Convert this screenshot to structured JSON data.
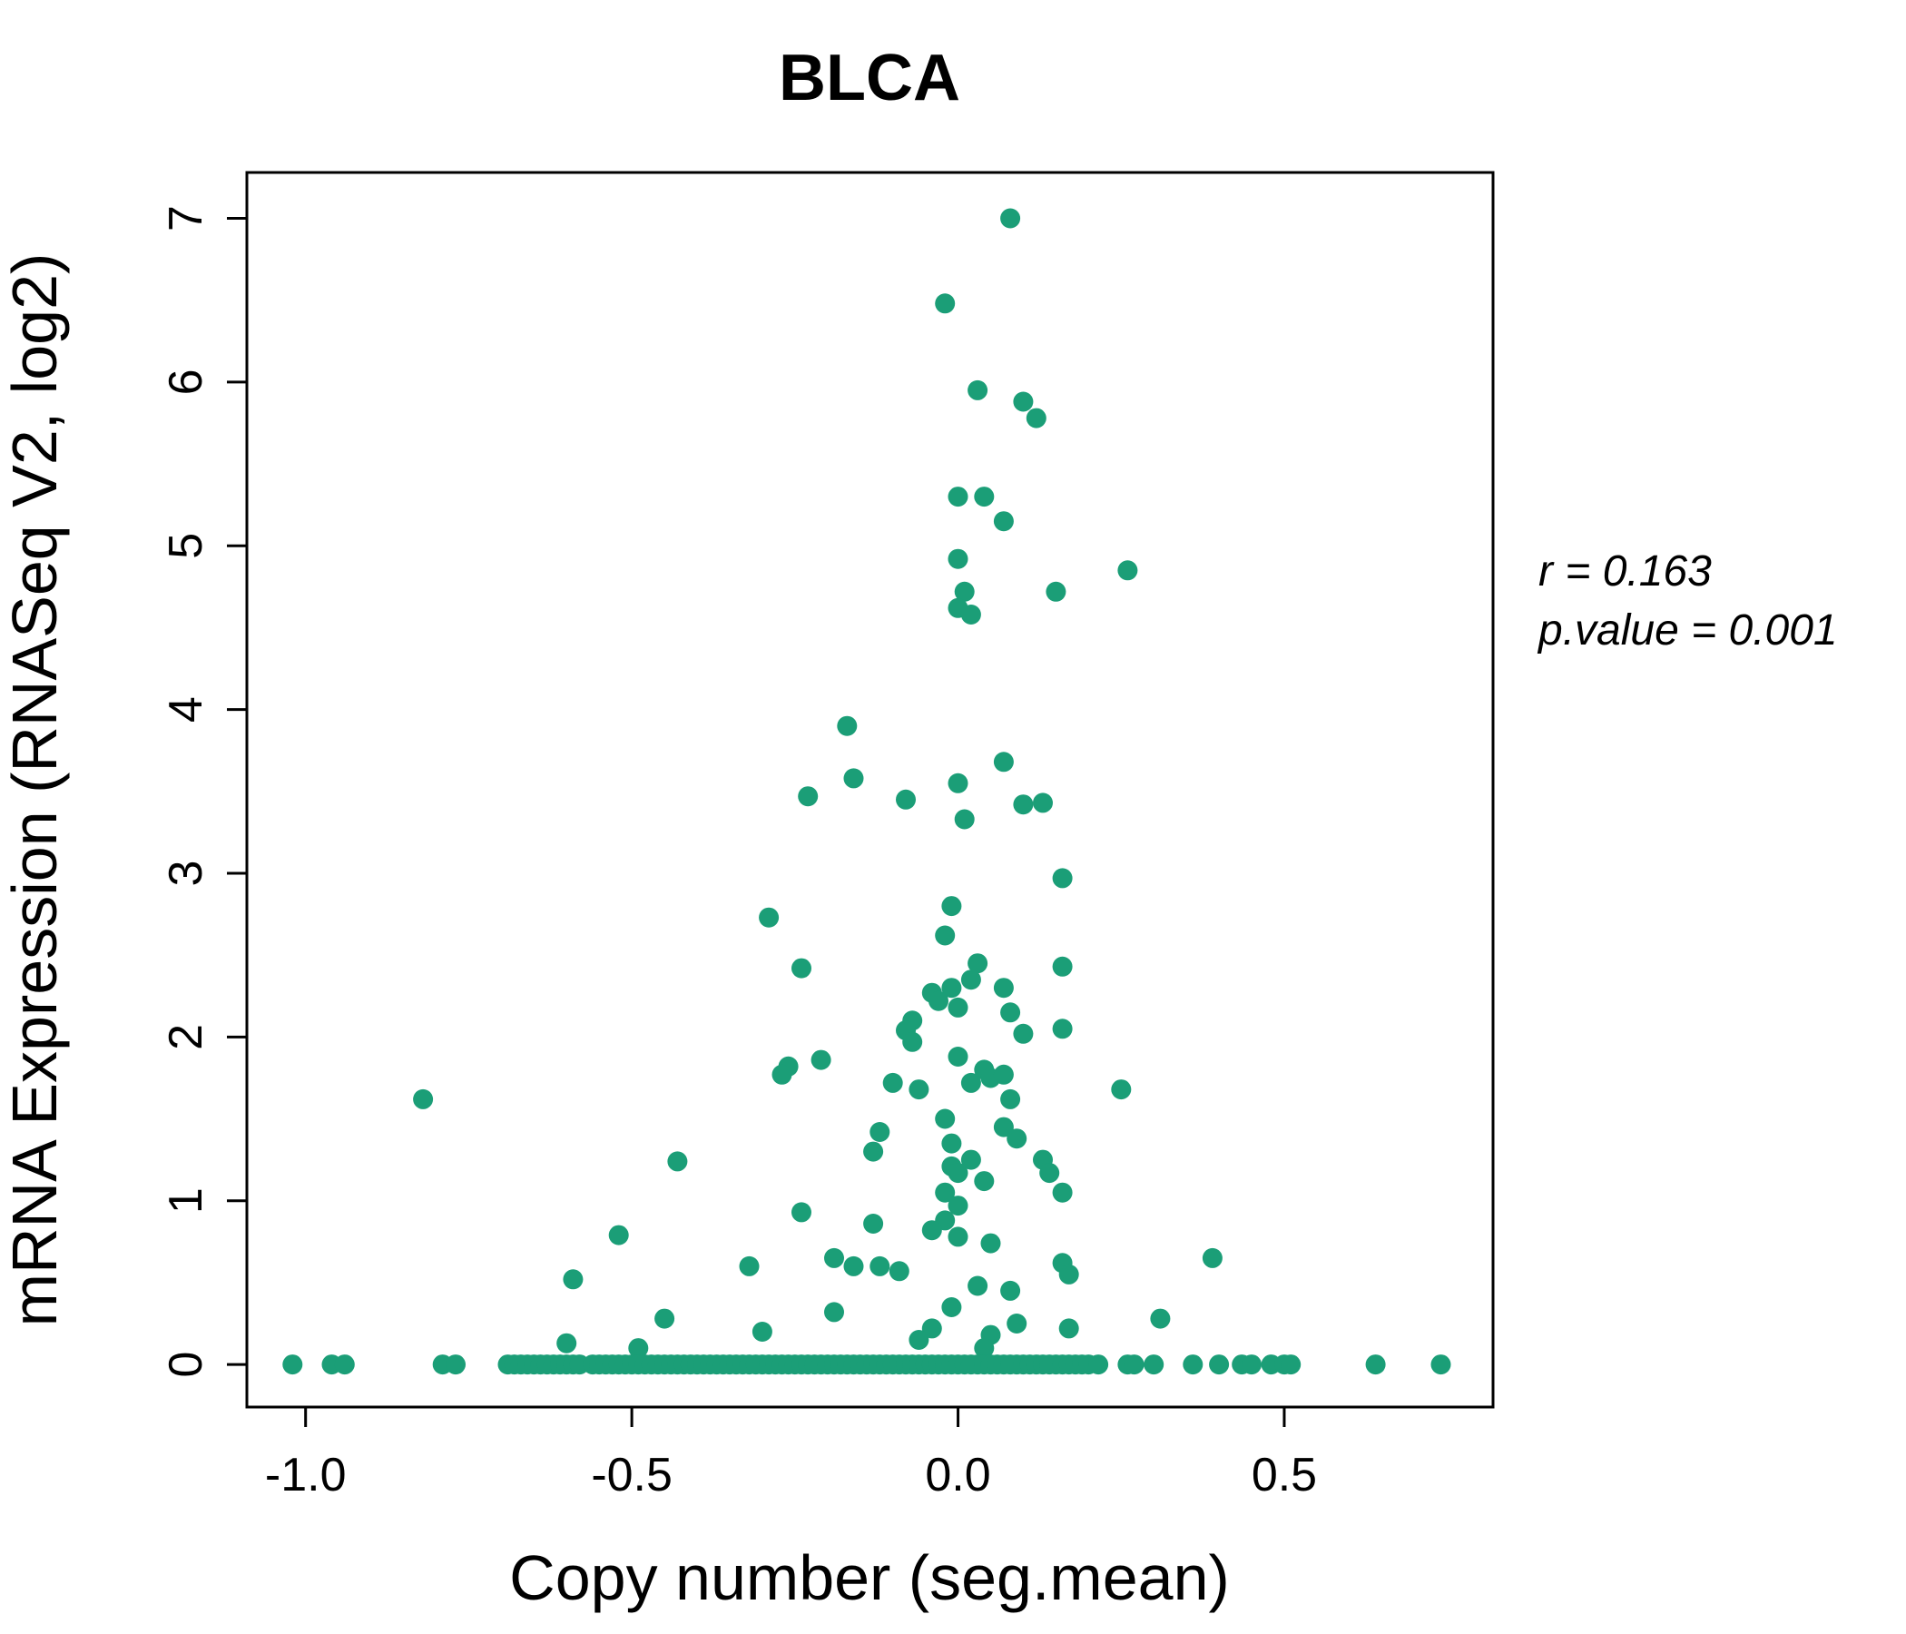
{
  "figure": {
    "colors": {
      "accent": "#1b9e77",
      "point_fill": "#1b9e77",
      "text": "#000000"
    }
  },
  "chart_data": {
    "type": "scatter",
    "title": "BLCA",
    "xlabel": "Copy number (seg.mean)",
    "ylabel": "mRNA Expression (RNASeq V2, log2)",
    "xlim": [
      -1.09,
      0.82
    ],
    "ylim": [
      -0.26,
      7.28
    ],
    "xticks": [
      -1.0,
      -0.5,
      0.0,
      0.5
    ],
    "xtick_labels": [
      "-1.0",
      "-0.5",
      "0.0",
      "0.5"
    ],
    "yticks": [
      0,
      1,
      2,
      3,
      4,
      5,
      6,
      7
    ],
    "ytick_labels": [
      "0",
      "1",
      "2",
      "3",
      "4",
      "5",
      "6",
      "7"
    ],
    "grid": false,
    "legend": null,
    "annotations": [
      "r = 0.163",
      "p.value = 0.001"
    ],
    "stats": {
      "r": 0.163,
      "p_value": 0.001
    },
    "points": [
      [
        0.08,
        7.0
      ],
      [
        -0.02,
        6.48
      ],
      [
        0.03,
        5.95
      ],
      [
        0.1,
        5.88
      ],
      [
        0.12,
        5.78
      ],
      [
        0.0,
        5.3
      ],
      [
        0.04,
        5.3
      ],
      [
        0.07,
        5.15
      ],
      [
        0.0,
        4.92
      ],
      [
        0.26,
        4.85
      ],
      [
        0.01,
        4.72
      ],
      [
        0.15,
        4.72
      ],
      [
        0.0,
        4.62
      ],
      [
        0.02,
        4.58
      ],
      [
        -0.17,
        3.9
      ],
      [
        0.07,
        3.68
      ],
      [
        -0.16,
        3.58
      ],
      [
        0.0,
        3.55
      ],
      [
        -0.23,
        3.47
      ],
      [
        -0.08,
        3.45
      ],
      [
        0.13,
        3.43
      ],
      [
        0.1,
        3.42
      ],
      [
        0.01,
        3.33
      ],
      [
        0.16,
        2.97
      ],
      [
        -0.01,
        2.8
      ],
      [
        -0.29,
        2.73
      ],
      [
        -0.02,
        2.62
      ],
      [
        0.03,
        2.45
      ],
      [
        -0.24,
        2.42
      ],
      [
        0.16,
        2.43
      ],
      [
        0.02,
        2.35
      ],
      [
        -0.01,
        2.3
      ],
      [
        0.07,
        2.3
      ],
      [
        -0.04,
        2.27
      ],
      [
        -0.03,
        2.22
      ],
      [
        0.0,
        2.18
      ],
      [
        0.08,
        2.15
      ],
      [
        -0.07,
        2.1
      ],
      [
        -0.08,
        2.04
      ],
      [
        0.1,
        2.02
      ],
      [
        0.16,
        2.05
      ],
      [
        -0.07,
        1.97
      ],
      [
        0.0,
        1.88
      ],
      [
        -0.21,
        1.86
      ],
      [
        -0.26,
        1.82
      ],
      [
        -0.27,
        1.77
      ],
      [
        0.04,
        1.8
      ],
      [
        0.05,
        1.75
      ],
      [
        0.07,
        1.77
      ],
      [
        0.02,
        1.72
      ],
      [
        -0.1,
        1.72
      ],
      [
        -0.06,
        1.68
      ],
      [
        -0.82,
        1.62
      ],
      [
        0.25,
        1.68
      ],
      [
        0.08,
        1.62
      ],
      [
        -0.02,
        1.5
      ],
      [
        0.07,
        1.45
      ],
      [
        -0.12,
        1.42
      ],
      [
        0.09,
        1.38
      ],
      [
        -0.01,
        1.35
      ],
      [
        -0.13,
        1.3
      ],
      [
        -0.43,
        1.24
      ],
      [
        0.02,
        1.25
      ],
      [
        0.13,
        1.25
      ],
      [
        -0.01,
        1.21
      ],
      [
        0.0,
        1.17
      ],
      [
        0.14,
        1.17
      ],
      [
        0.04,
        1.12
      ],
      [
        -0.02,
        1.05
      ],
      [
        0.16,
        1.05
      ],
      [
        0.0,
        0.97
      ],
      [
        -0.24,
        0.93
      ],
      [
        -0.02,
        0.88
      ],
      [
        -0.13,
        0.86
      ],
      [
        -0.04,
        0.82
      ],
      [
        -0.52,
        0.79
      ],
      [
        0.0,
        0.78
      ],
      [
        0.05,
        0.74
      ],
      [
        -0.19,
        0.65
      ],
      [
        0.39,
        0.65
      ],
      [
        -0.32,
        0.6
      ],
      [
        -0.16,
        0.6
      ],
      [
        -0.12,
        0.6
      ],
      [
        0.16,
        0.62
      ],
      [
        -0.09,
        0.57
      ],
      [
        0.17,
        0.55
      ],
      [
        -0.59,
        0.52
      ],
      [
        0.03,
        0.48
      ],
      [
        0.08,
        0.45
      ],
      [
        -0.01,
        0.35
      ],
      [
        -0.19,
        0.32
      ],
      [
        -0.45,
        0.28
      ],
      [
        0.31,
        0.28
      ],
      [
        0.09,
        0.25
      ],
      [
        -0.04,
        0.22
      ],
      [
        0.17,
        0.22
      ],
      [
        -0.3,
        0.2
      ],
      [
        0.05,
        0.18
      ],
      [
        -0.06,
        0.15
      ],
      [
        -0.6,
        0.13
      ],
      [
        -0.49,
        0.1
      ],
      [
        0.04,
        0.1
      ]
    ],
    "zero_row_x": [
      -1.02,
      -0.96,
      -0.94,
      -0.79,
      -0.77,
      -0.69,
      -0.68,
      -0.67,
      -0.66,
      -0.65,
      -0.64,
      -0.63,
      -0.62,
      -0.61,
      -0.6,
      -0.59,
      -0.58,
      -0.56,
      -0.55,
      -0.54,
      -0.53,
      -0.52,
      -0.51,
      -0.5,
      -0.49,
      -0.48,
      -0.47,
      -0.46,
      -0.45,
      -0.44,
      -0.43,
      -0.42,
      -0.41,
      -0.4,
      -0.39,
      -0.38,
      -0.37,
      -0.36,
      -0.35,
      -0.34,
      -0.33,
      -0.32,
      -0.31,
      -0.3,
      -0.29,
      -0.28,
      -0.27,
      -0.26,
      -0.25,
      -0.24,
      -0.23,
      -0.22,
      -0.21,
      -0.2,
      -0.19,
      -0.18,
      -0.17,
      -0.16,
      -0.15,
      -0.14,
      -0.13,
      -0.12,
      -0.11,
      -0.1,
      -0.09,
      -0.08,
      -0.07,
      -0.06,
      -0.05,
      -0.04,
      -0.03,
      -0.02,
      -0.01,
      0.0,
      0.01,
      0.02,
      0.03,
      0.04,
      0.05,
      0.06,
      0.07,
      0.08,
      0.09,
      0.1,
      0.11,
      0.12,
      0.13,
      0.14,
      0.15,
      0.16,
      0.17,
      0.18,
      0.19,
      0.2,
      0.215,
      0.26,
      0.27,
      0.3,
      0.36,
      0.4,
      0.435,
      0.45,
      0.48,
      0.5,
      0.51,
      0.64,
      0.74
    ]
  }
}
